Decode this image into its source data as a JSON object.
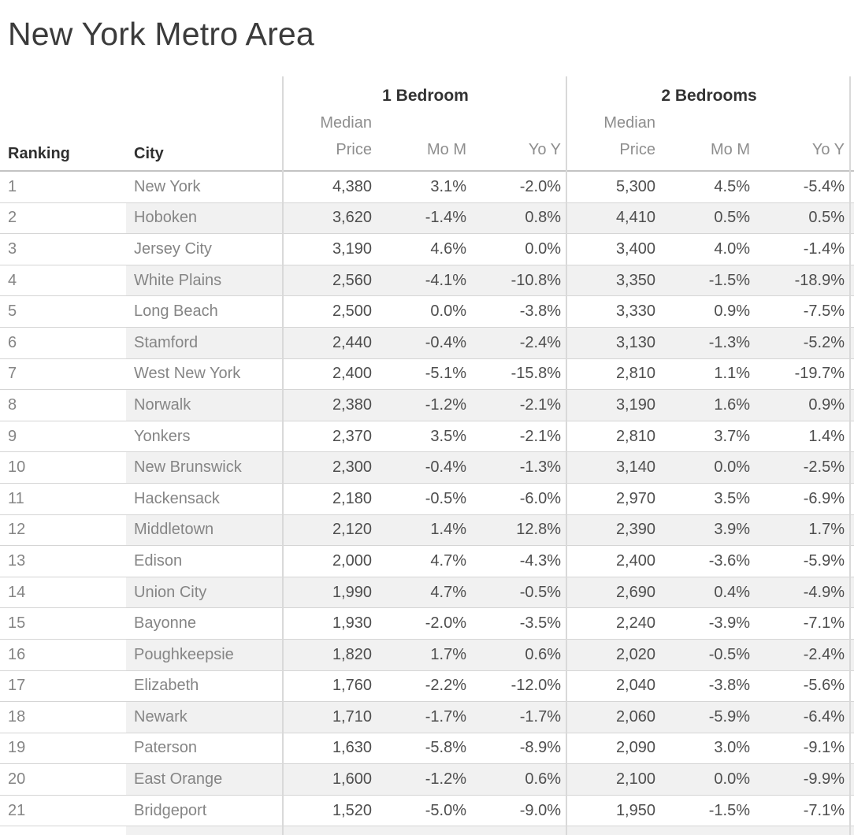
{
  "title": "New York Metro Area",
  "headers": {
    "ranking": "Ranking",
    "city": "City",
    "median_line1": "Median",
    "median_line2": "Price",
    "mom": "Mo M",
    "yoy": "Yo Y"
  },
  "colors": {
    "band": "#f1f1f1",
    "row_border": "#d5d5d5",
    "header_border": "#c3c3c3",
    "pane_divider": "#d9d9d9",
    "title_text": "#3b3b3b",
    "header_text": "#2f2f2f",
    "subheader_text": "#8e8e8e",
    "label_text": "#858585",
    "value_text": "#4e4e4e"
  },
  "chart_data": {
    "type": "table",
    "title": "New York Metro Area",
    "left_columns": [
      "Ranking",
      "City"
    ],
    "column_groups": [
      "1 Bedroom",
      "2 Bedrooms"
    ],
    "sub_columns": [
      "Median Price",
      "Mo M",
      "Yo Y"
    ],
    "rows": [
      {
        "rank": "1",
        "city": "New York",
        "p1": "4,380",
        "m1": "3.1%",
        "y1": "-2.0%",
        "p2": "5,300",
        "m2": "4.5%",
        "y2": "-5.4%"
      },
      {
        "rank": "2",
        "city": "Hoboken",
        "p1": "3,620",
        "m1": "-1.4%",
        "y1": "0.8%",
        "p2": "4,410",
        "m2": "0.5%",
        "y2": "0.5%"
      },
      {
        "rank": "3",
        "city": "Jersey City",
        "p1": "3,190",
        "m1": "4.6%",
        "y1": "0.0%",
        "p2": "3,400",
        "m2": "4.0%",
        "y2": "-1.4%"
      },
      {
        "rank": "4",
        "city": "White Plains",
        "p1": "2,560",
        "m1": "-4.1%",
        "y1": "-10.8%",
        "p2": "3,350",
        "m2": "-1.5%",
        "y2": "-18.9%"
      },
      {
        "rank": "5",
        "city": "Long Beach",
        "p1": "2,500",
        "m1": "0.0%",
        "y1": "-3.8%",
        "p2": "3,330",
        "m2": "0.9%",
        "y2": "-7.5%"
      },
      {
        "rank": "6",
        "city": "Stamford",
        "p1": "2,440",
        "m1": "-0.4%",
        "y1": "-2.4%",
        "p2": "3,130",
        "m2": "-1.3%",
        "y2": "-5.2%"
      },
      {
        "rank": "7",
        "city": "West New York",
        "p1": "2,400",
        "m1": "-5.1%",
        "y1": "-15.8%",
        "p2": "2,810",
        "m2": "1.1%",
        "y2": "-19.7%"
      },
      {
        "rank": "8",
        "city": "Norwalk",
        "p1": "2,380",
        "m1": "-1.2%",
        "y1": "-2.1%",
        "p2": "3,190",
        "m2": "1.6%",
        "y2": "0.9%"
      },
      {
        "rank": "9",
        "city": "Yonkers",
        "p1": "2,370",
        "m1": "3.5%",
        "y1": "-2.1%",
        "p2": "2,810",
        "m2": "3.7%",
        "y2": "1.4%"
      },
      {
        "rank": "10",
        "city": "New Brunswick",
        "p1": "2,300",
        "m1": "-0.4%",
        "y1": "-1.3%",
        "p2": "3,140",
        "m2": "0.0%",
        "y2": "-2.5%"
      },
      {
        "rank": "11",
        "city": "Hackensack",
        "p1": "2,180",
        "m1": "-0.5%",
        "y1": "-6.0%",
        "p2": "2,970",
        "m2": "3.5%",
        "y2": "-6.9%"
      },
      {
        "rank": "12",
        "city": "Middletown",
        "p1": "2,120",
        "m1": "1.4%",
        "y1": "12.8%",
        "p2": "2,390",
        "m2": "3.9%",
        "y2": "1.7%"
      },
      {
        "rank": "13",
        "city": "Edison",
        "p1": "2,000",
        "m1": "4.7%",
        "y1": "-4.3%",
        "p2": "2,400",
        "m2": "-3.6%",
        "y2": "-5.9%"
      },
      {
        "rank": "14",
        "city": "Union City",
        "p1": "1,990",
        "m1": "4.7%",
        "y1": "-0.5%",
        "p2": "2,690",
        "m2": "0.4%",
        "y2": "-4.9%"
      },
      {
        "rank": "15",
        "city": "Bayonne",
        "p1": "1,930",
        "m1": "-2.0%",
        "y1": "-3.5%",
        "p2": "2,240",
        "m2": "-3.9%",
        "y2": "-7.1%"
      },
      {
        "rank": "16",
        "city": "Poughkeepsie",
        "p1": "1,820",
        "m1": "1.7%",
        "y1": "0.6%",
        "p2": "2,020",
        "m2": "-0.5%",
        "y2": "-2.4%"
      },
      {
        "rank": "17",
        "city": "Elizabeth",
        "p1": "1,760",
        "m1": "-2.2%",
        "y1": "-12.0%",
        "p2": "2,040",
        "m2": "-3.8%",
        "y2": "-5.6%"
      },
      {
        "rank": "18",
        "city": "Newark",
        "p1": "1,710",
        "m1": "-1.7%",
        "y1": "-1.7%",
        "p2": "2,060",
        "m2": "-5.9%",
        "y2": "-6.4%"
      },
      {
        "rank": "19",
        "city": "Paterson",
        "p1": "1,630",
        "m1": "-5.8%",
        "y1": "-8.9%",
        "p2": "2,090",
        "m2": "3.0%",
        "y2": "-9.1%"
      },
      {
        "rank": "20",
        "city": "East Orange",
        "p1": "1,600",
        "m1": "-1.2%",
        "y1": "0.6%",
        "p2": "2,100",
        "m2": "0.0%",
        "y2": "-9.9%"
      },
      {
        "rank": "21",
        "city": "Bridgeport",
        "p1": "1,520",
        "m1": "-5.0%",
        "y1": "-9.0%",
        "p2": "1,950",
        "m2": "-1.5%",
        "y2": "-7.1%"
      }
    ]
  }
}
